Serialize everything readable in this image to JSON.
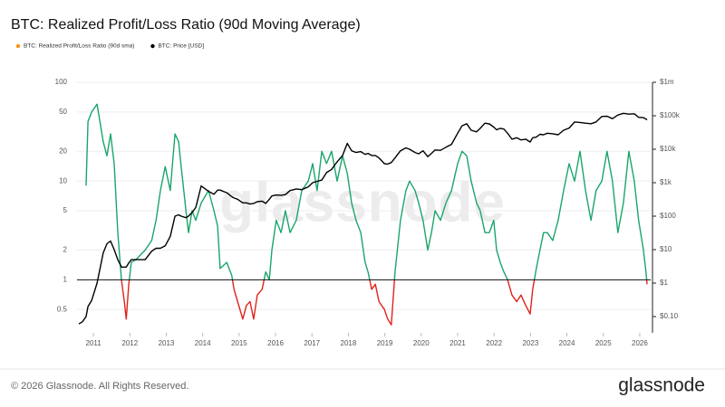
{
  "chart_data": {
    "type": "line",
    "title": "BTC: Realized Profit/Loss Ratio (90d Moving Average)",
    "x": [
      2010.6,
      2010.7,
      2010.8,
      2010.85,
      2010.95,
      2011.1,
      2011.27,
      2011.37,
      2011.47,
      2011.57,
      2011.67,
      2011.77,
      2011.85,
      2011.9,
      2011.97,
      2012.04,
      2012.17,
      2012.42,
      2012.6,
      2012.72,
      2012.84,
      2012.97,
      2013.11,
      2013.24,
      2013.34,
      2013.41,
      2013.54,
      2013.61,
      2013.71,
      2013.81,
      2013.96,
      2014.16,
      2014.31,
      2014.41,
      2014.48,
      2014.66,
      2014.8,
      2014.86,
      2014.96,
      2015.1,
      2015.2,
      2015.3,
      2015.4,
      2015.5,
      2015.63,
      2015.73,
      2015.83,
      2015.9,
      2016.02,
      2016.15,
      2016.27,
      2016.4,
      2016.57,
      2016.72,
      2016.9,
      2017.02,
      2017.14,
      2017.27,
      2017.4,
      2017.54,
      2017.69,
      2017.84,
      2017.97,
      2018.09,
      2018.21,
      2018.34,
      2018.46,
      2018.54,
      2018.64,
      2018.74,
      2018.84,
      2018.99,
      2019.08,
      2019.18,
      2019.28,
      2019.43,
      2019.58,
      2019.68,
      2019.83,
      2019.93,
      2020.05,
      2020.18,
      2020.28,
      2020.38,
      2020.53,
      2020.68,
      2020.83,
      2021.0,
      2021.12,
      2021.25,
      2021.37,
      2021.52,
      2021.62,
      2021.75,
      2021.87,
      2021.99,
      2022.07,
      2022.17,
      2022.27,
      2022.37,
      2022.49,
      2022.62,
      2022.74,
      2022.87,
      2022.99,
      2023.06,
      2023.16,
      2023.26,
      2023.36,
      2023.46,
      2023.61,
      2023.76,
      2023.91,
      2024.06,
      2024.21,
      2024.36,
      2024.51,
      2024.66,
      2024.8,
      2024.96,
      2025.1,
      2025.25,
      2025.4,
      2025.55,
      2025.7,
      2025.85,
      2025.97,
      2026.1,
      2026.17,
      2026.2
    ],
    "xlim": [
      2010.55,
      2026.3
    ],
    "xticks": [
      2011,
      2012,
      2013,
      2014,
      2015,
      2016,
      2017,
      2018,
      2019,
      2020,
      2021,
      2022,
      2023,
      2024,
      2025,
      2026
    ],
    "ylim": [
      0.29,
      100
    ],
    "yticks": [
      0.5,
      1,
      2,
      5,
      10,
      20,
      50,
      100
    ],
    "y_log": true,
    "y2lim": [
      0.0326,
      1000000
    ],
    "y2ticks": [
      {
        "value": 0.1,
        "label": "$0.10"
      },
      {
        "value": 1,
        "label": "$1"
      },
      {
        "value": 10,
        "label": "$10"
      },
      {
        "value": 100,
        "label": "$100"
      },
      {
        "value": 1000,
        "label": "$1k"
      },
      {
        "value": 10000,
        "label": "$10k"
      },
      {
        "value": 100000,
        "label": "$100k"
      },
      {
        "value": 1000000,
        "label": "$1m"
      }
    ],
    "y2_log": true,
    "grid": true,
    "reference_line": 1,
    "legend": "top-left",
    "series": [
      {
        "name": "BTC: Realized Profit/Loss Ratio (90d sma)",
        "color": "#f7931a",
        "line_colors": {
          "above": "#1aa56a",
          "below": "#e0221b"
        },
        "values": [
          null,
          null,
          9,
          40,
          50,
          60,
          25,
          18,
          30,
          15,
          3,
          1,
          0.6,
          0.4,
          0.9,
          1.5,
          1.6,
          2,
          2.5,
          4,
          8,
          14,
          8,
          30,
          25,
          14,
          5,
          3,
          5,
          4,
          6,
          8,
          5,
          3.5,
          1.3,
          1.5,
          1.1,
          0.8,
          0.6,
          0.4,
          0.55,
          0.6,
          0.4,
          0.7,
          0.8,
          1.2,
          1.0,
          2,
          4,
          3,
          5,
          3,
          4,
          8,
          10,
          15,
          8,
          20,
          15,
          20,
          10,
          18,
          12,
          6,
          4,
          3,
          1.5,
          1.2,
          0.8,
          0.9,
          0.6,
          0.5,
          0.4,
          0.35,
          1.2,
          4,
          8,
          10,
          8,
          6,
          4,
          2,
          3,
          5,
          4,
          6,
          8,
          15,
          20,
          18,
          10,
          6,
          5,
          3,
          3,
          4,
          2,
          1.5,
          1.2,
          1.0,
          0.7,
          0.6,
          0.7,
          0.55,
          0.45,
          0.8,
          1.3,
          2,
          3,
          3,
          2.5,
          4,
          8,
          15,
          10,
          20,
          8,
          4,
          8,
          10,
          20,
          10,
          3,
          6,
          20,
          10,
          4,
          2,
          1.2,
          0.9
        ]
      },
      {
        "name": "BTC: Price [USD]",
        "color": "#000000",
        "axis": "y2",
        "values": [
          0.06,
          0.07,
          0.1,
          0.2,
          0.3,
          1,
          8,
          15,
          18,
          10,
          5,
          3,
          3,
          3,
          4,
          5,
          5,
          5,
          9,
          11,
          11,
          13,
          25,
          100,
          110,
          100,
          90,
          100,
          130,
          180,
          800,
          550,
          450,
          600,
          600,
          500,
          380,
          350,
          320,
          250,
          250,
          230,
          240,
          270,
          280,
          240,
          320,
          400,
          430,
          420,
          440,
          580,
          650,
          620,
          750,
          1000,
          1100,
          1200,
          2000,
          2500,
          4200,
          6500,
          15000,
          9000,
          8000,
          8500,
          7000,
          7500,
          6500,
          6500,
          5500,
          3700,
          3600,
          4000,
          5500,
          9000,
          11000,
          10000,
          8000,
          7300,
          9000,
          6000,
          7500,
          9500,
          9300,
          11500,
          14000,
          30000,
          50000,
          58000,
          37000,
          33000,
          42000,
          60000,
          57000,
          46000,
          38000,
          42000,
          40000,
          30000,
          20000,
          22000,
          19000,
          20000,
          16500,
          22000,
          23000,
          28000,
          27000,
          30000,
          29000,
          27000,
          37000,
          43000,
          65000,
          63000,
          60000,
          58000,
          65000,
          95000,
          97000,
          82000,
          105000,
          118000,
          112000,
          115000,
          90000,
          88000,
          80000,
          75000
        ]
      }
    ]
  },
  "watermark": "glassnode",
  "footer": {
    "copyright": "© 2026 Glassnode. All Rights Reserved.",
    "logo": "glassnode"
  }
}
